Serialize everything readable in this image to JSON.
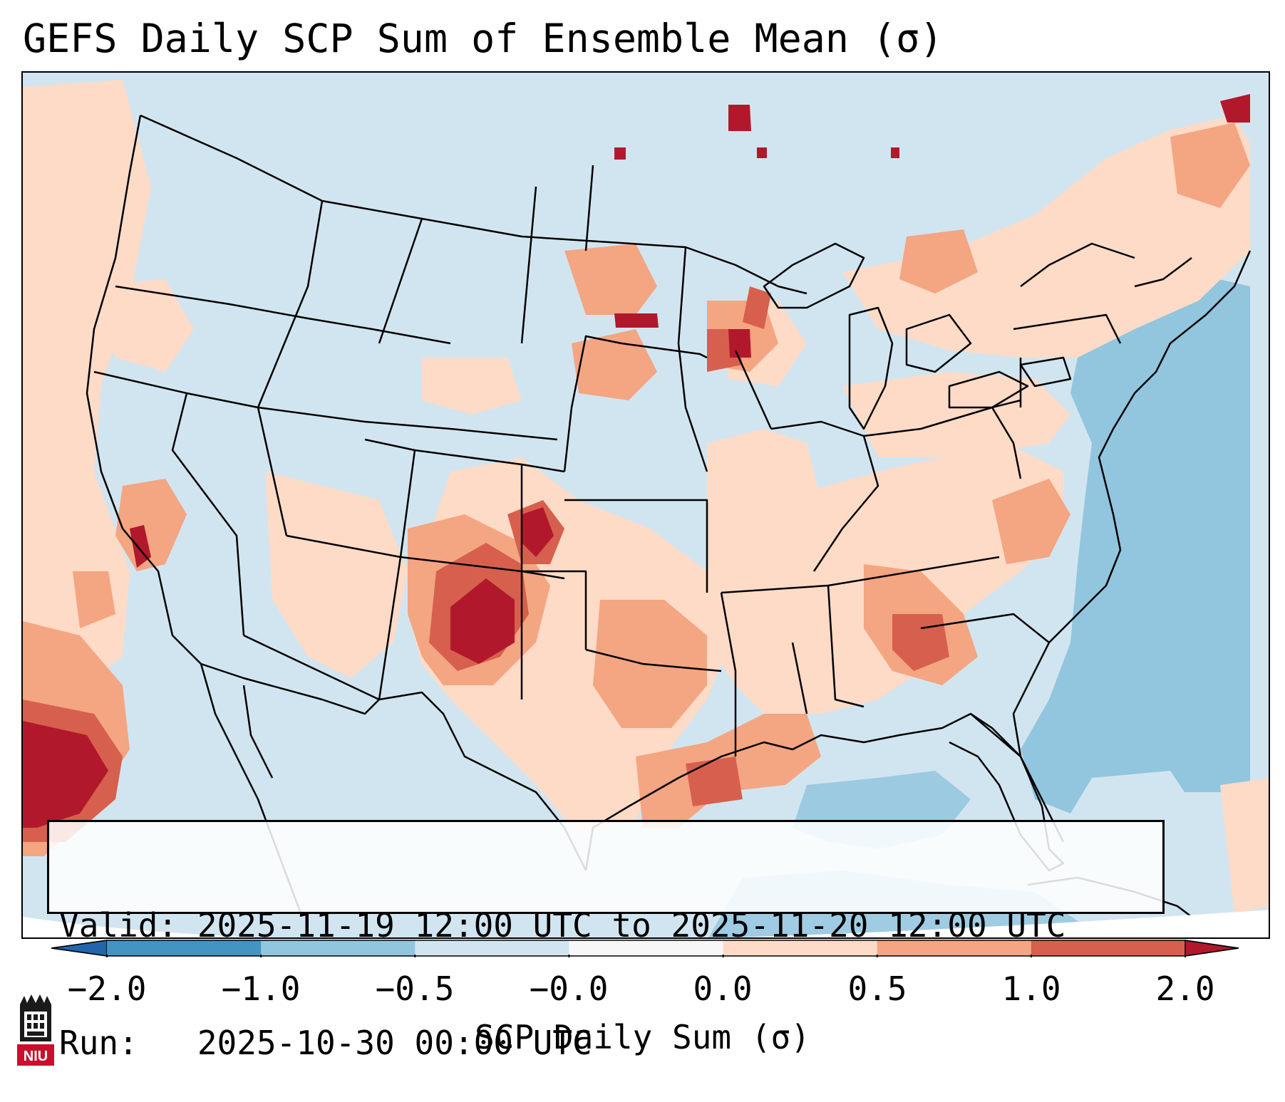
{
  "title": "GEFS Daily SCP Sum of Ensemble Mean (σ)",
  "info": {
    "valid": "Valid: 2025-11-19 12:00 UTC to 2025-11-20 12:00 UTC",
    "run": "Run:   2025-10-30 00:00 UTC"
  },
  "colorbar": {
    "title": "SCP Daily Sum (σ)",
    "tick_labels": [
      "−2.0",
      "−1.0",
      "−0.5",
      "−0.0",
      "0.0",
      "0.5",
      "1.0",
      "2.0"
    ],
    "bins": [
      {
        "from": "-2.0",
        "to": "-1.0",
        "color": "#4393c3"
      },
      {
        "from": "-1.0",
        "to": "-0.5",
        "color": "#92c5de"
      },
      {
        "from": "-0.5",
        "to": "-0.0",
        "color": "#d1e5f0"
      },
      {
        "from": "-0.0",
        "to": "0.0",
        "color": "#f7f7f7"
      },
      {
        "from": "0.0",
        "to": "0.5",
        "color": "#fddbc7"
      },
      {
        "from": "0.5",
        "to": "1.0",
        "color": "#f4a582"
      },
      {
        "from": "1.0",
        "to": "2.0",
        "color": "#d6604d"
      }
    ],
    "under_color": "#2166ac",
    "over_color": "#b2182b"
  },
  "map": {
    "background_color": "#d1e5f0",
    "region": "Continental United States"
  },
  "logo": {
    "text": "NIU",
    "color": "#c8102e"
  }
}
